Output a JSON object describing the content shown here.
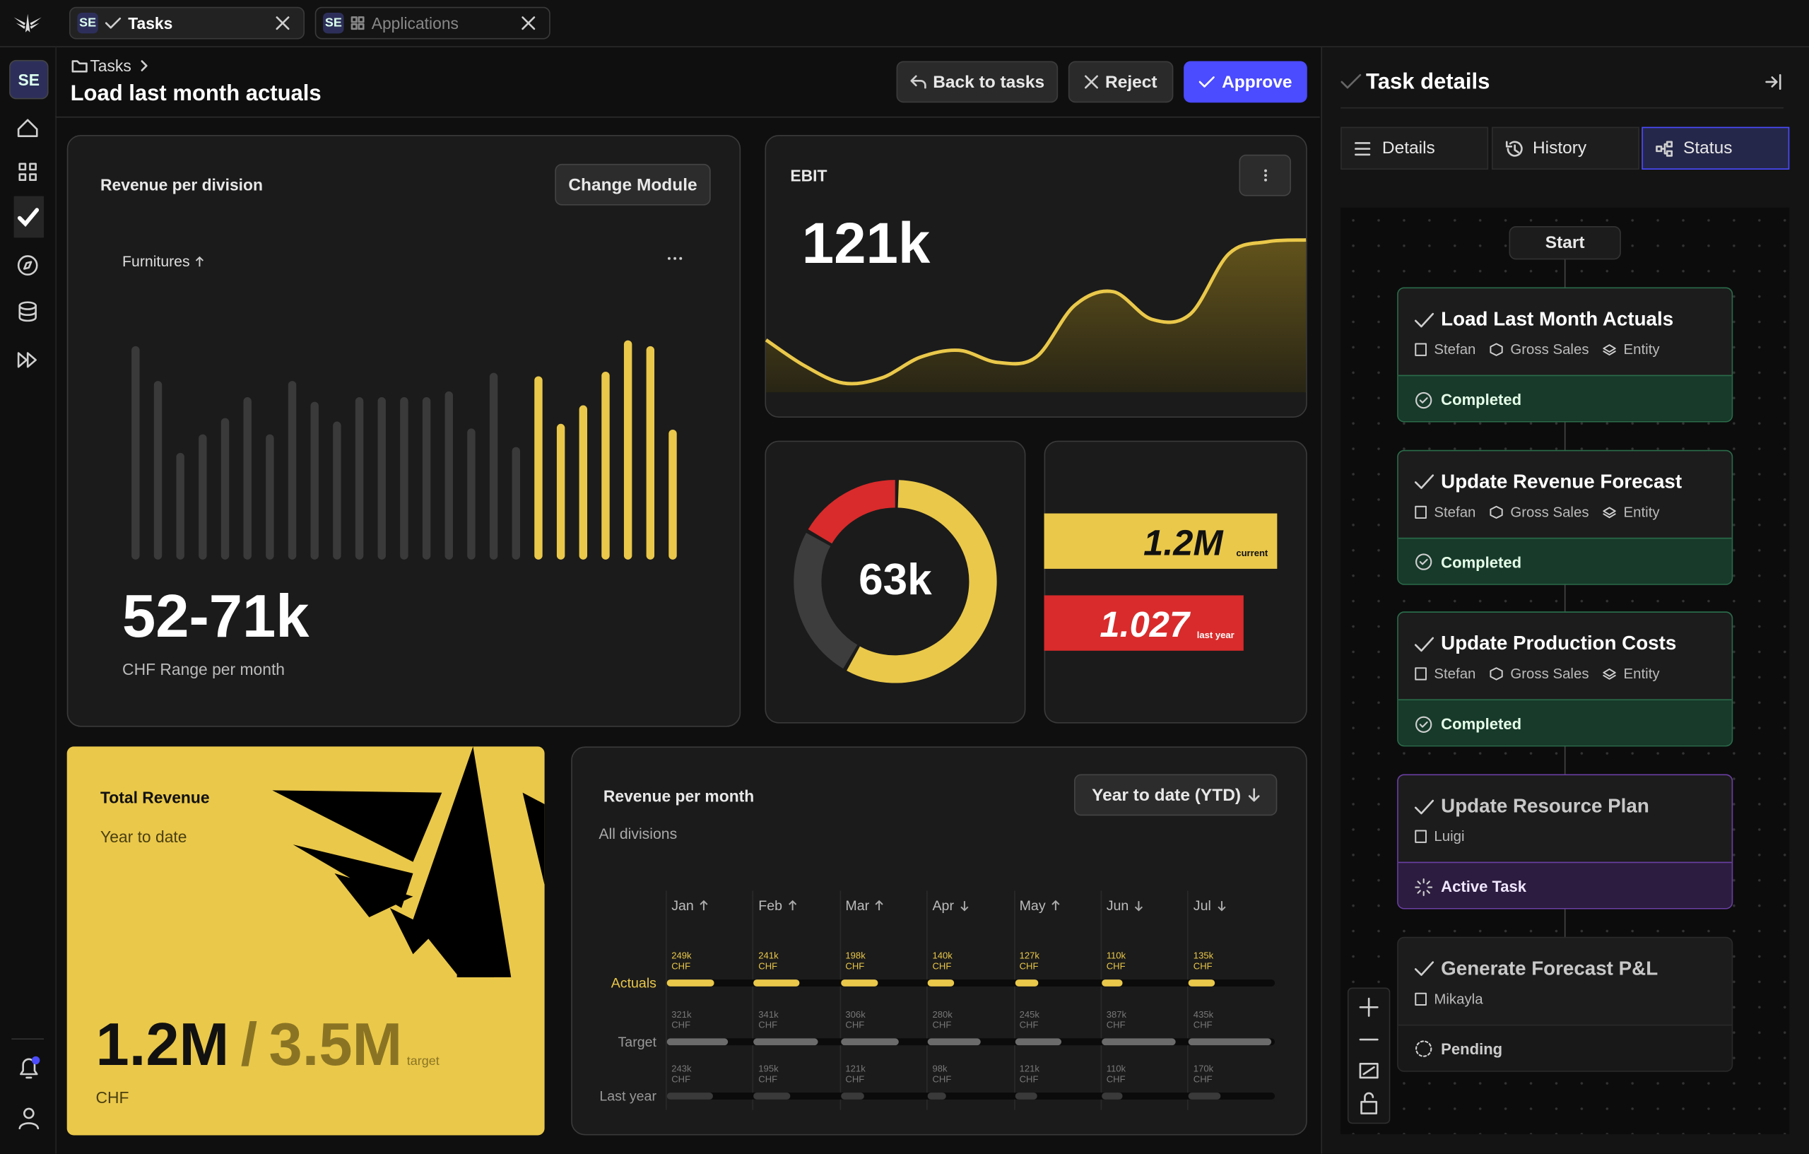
{
  "tabs": [
    {
      "badge": "SE",
      "label": "Tasks"
    },
    {
      "badge": "SE",
      "label": "Applications"
    }
  ],
  "sidebar": {
    "avatar": "SE"
  },
  "header": {
    "breadcrumb": "Tasks",
    "title": "Load last month actuals",
    "actions": [
      "Back to tasks",
      "Reject",
      "Approve"
    ]
  },
  "revenue_per_division": {
    "type": "bar",
    "title": "Revenue per division",
    "button": "Change Module",
    "filter": "Furnitures",
    "filter_trend": "up",
    "value": "52-71k",
    "caption": "CHF Range per month",
    "values": [
      184,
      154,
      92,
      108,
      122,
      140,
      108,
      154,
      136,
      119,
      140,
      140,
      140,
      140,
      145,
      113,
      161,
      97,
      158,
      117,
      133,
      162,
      189,
      184,
      112
    ],
    "colors": [
      "#3a3a3a",
      "#3a3a3a",
      "#3a3a3a",
      "#3a3a3a",
      "#3a3a3a",
      "#3a3a3a",
      "#3a3a3a",
      "#3a3a3a",
      "#3a3a3a",
      "#3a3a3a",
      "#3a3a3a",
      "#3a3a3a",
      "#3a3a3a",
      "#3a3a3a",
      "#3a3a3a",
      "#3a3a3a",
      "#3a3a3a",
      "#3a3a3a",
      "#eac84a",
      "#eac84a",
      "#eac84a",
      "#eac84a",
      "#eac84a",
      "#eac84a",
      "#eac84a"
    ]
  },
  "ebit": {
    "type": "area",
    "title": "EBIT",
    "value": "121k",
    "color": "#eac84a",
    "values": [
      40,
      25,
      15,
      18,
      30,
      34,
      27,
      30,
      60,
      68,
      52,
      55,
      90,
      97,
      98
    ]
  },
  "donut": {
    "type": "pie",
    "center": "63k",
    "values": [
      58,
      25,
      17
    ],
    "colors": [
      "#eac84a",
      "#3d3d3d",
      "#d92b2b"
    ]
  },
  "comparison": {
    "type": "bar",
    "bars": [
      {
        "value": 1.2,
        "value_label": "1.2M",
        "label": "current",
        "color": "#eac84a"
      },
      {
        "value": 1.027,
        "value_label": "1.027",
        "label": "last year",
        "color": "#d92b2b"
      }
    ]
  },
  "total_revenue": {
    "title": "Total Revenue",
    "subtitle": "Year to date",
    "value": "1.2M",
    "separator": "/",
    "target": "3.5M",
    "target_label": "target",
    "unit": "CHF"
  },
  "revenue_per_month": {
    "type": "bar",
    "title": "Revenue per month",
    "dropdown": "Year to date (YTD)",
    "subtitle": "All divisions",
    "unit": "CHF",
    "months": [
      {
        "name": "Jan",
        "trend": "up"
      },
      {
        "name": "Feb",
        "trend": "up"
      },
      {
        "name": "Mar",
        "trend": "up"
      },
      {
        "name": "Apr",
        "trend": "down"
      },
      {
        "name": "May",
        "trend": "up"
      },
      {
        "name": "Jun",
        "trend": "down"
      },
      {
        "name": "Jul",
        "trend": "down"
      }
    ],
    "series": [
      {
        "name": "Actuals",
        "color": "#eac84a",
        "values": [
          249,
          241,
          198,
          140,
          127,
          110,
          135
        ],
        "value_labels": [
          "249k",
          "241k",
          "198k",
          "140k",
          "127k",
          "110k",
          "135k"
        ]
      },
      {
        "name": "Target",
        "color": "#6b6b6b",
        "values": [
          321,
          341,
          306,
          280,
          245,
          387,
          435
        ],
        "value_labels": [
          "321k",
          "341k",
          "306k",
          "280k",
          "245k",
          "387k",
          "435k"
        ]
      },
      {
        "name": "Last year",
        "color": "#3a3a3a",
        "values": [
          243,
          195,
          121,
          98,
          121,
          110,
          170
        ],
        "value_labels": [
          "243k",
          "195k",
          "121k",
          "98k",
          "121k",
          "110k",
          "170k"
        ]
      }
    ]
  },
  "task_details": {
    "title": "Task details",
    "tabs": [
      "Details",
      "History",
      "Status"
    ],
    "active_tab": 2,
    "start": "Start",
    "nodes": [
      {
        "title": "Load Last Month Actuals",
        "assignee": "Stefan",
        "tags": [
          "Gross Sales",
          "Entity"
        ],
        "status": "Completed"
      },
      {
        "title": "Update Revenue Forecast",
        "assignee": "Stefan",
        "tags": [
          "Gross Sales",
          "Entity"
        ],
        "status": "Completed"
      },
      {
        "title": "Update Production Costs",
        "assignee": "Stefan",
        "tags": [
          "Gross Sales",
          "Entity"
        ],
        "status": "Completed"
      },
      {
        "title": "Update Resource Plan",
        "assignee": "Luigi",
        "tags": [],
        "status": "Active Task"
      },
      {
        "title": "Generate Forecast P&L",
        "assignee": "Mikayla",
        "tags": [],
        "status": "Pending"
      }
    ]
  }
}
